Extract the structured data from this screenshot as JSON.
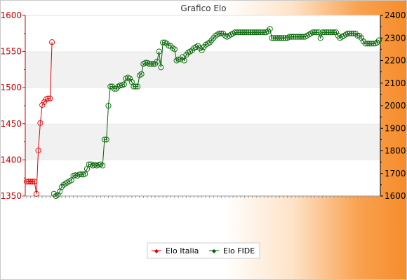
{
  "chart_data": {
    "type": "line",
    "title": "Grafico Elo",
    "xlabel": "",
    "ylabel": "",
    "grid": "horizontal bands",
    "legend_position": "bottom",
    "y_left": {
      "range": [
        1350,
        1600
      ],
      "ticks": [
        1350,
        1400,
        1450,
        1500,
        1550,
        1600
      ],
      "color": "#cc0000"
    },
    "y_right": {
      "range": [
        1600,
        2400
      ],
      "ticks": [
        1600,
        1700,
        1800,
        1900,
        2000,
        2100,
        2200,
        2300,
        2400
      ],
      "color": "#000000"
    },
    "series": [
      {
        "name": "Elo Italia",
        "axis": "left",
        "color": "#e00000",
        "values": [
          1370,
          1370,
          1370,
          1370,
          1370,
          1353,
          1413,
          1451,
          1476,
          1480,
          1484,
          1485,
          1485,
          1563
        ]
      },
      {
        "name": "Elo FIDE",
        "axis": "right",
        "color": "#006400",
        "start_index": 14,
        "values": [
          1610,
          1600,
          1605,
          1620,
          1640,
          1650,
          1655,
          1660,
          1665,
          1670,
          1690,
          1692,
          1690,
          1695,
          1697,
          1695,
          1698,
          1720,
          1740,
          1740,
          1735,
          1738,
          1735,
          1738,
          1740,
          1735,
          1850,
          1850,
          2000,
          2085,
          2085,
          2075,
          2075,
          2085,
          2090,
          2090,
          2095,
          2120,
          2125,
          2120,
          2105,
          2085,
          2085,
          2085,
          2135,
          2140,
          2185,
          2190,
          2190,
          2185,
          2185,
          2185,
          2185,
          2195,
          2240,
          2170,
          2280,
          2280,
          2275,
          2265,
          2265,
          2255,
          2250,
          2200,
          2205,
          2205,
          2215,
          2200,
          2225,
          2235,
          2240,
          2245,
          2255,
          2260,
          2265,
          2255,
          2245,
          2260,
          2270,
          2275,
          2280,
          2290,
          2300,
          2310,
          2315,
          2320,
          2320,
          2320,
          2310,
          2305,
          2310,
          2315,
          2320,
          2325,
          2325,
          2325,
          2325,
          2325,
          2325,
          2325,
          2325,
          2325,
          2325,
          2325,
          2325,
          2325,
          2325,
          2325,
          2325,
          2325,
          2330,
          2340,
          2300,
          2300,
          2300,
          2300,
          2300,
          2300,
          2300,
          2300,
          2300,
          2305,
          2305,
          2305,
          2305,
          2305,
          2305,
          2305,
          2305,
          2305,
          2310,
          2315,
          2320,
          2325,
          2325,
          2325,
          2325,
          2300,
          2325,
          2325,
          2325,
          2325,
          2325,
          2325,
          2325,
          2325,
          2310,
          2300,
          2305,
          2310,
          2315,
          2320,
          2320,
          2320,
          2320,
          2320,
          2310,
          2310,
          2300,
          2285,
          2275,
          2275,
          2275,
          2275,
          2275,
          2275,
          2280,
          2290
        ]
      }
    ]
  }
}
